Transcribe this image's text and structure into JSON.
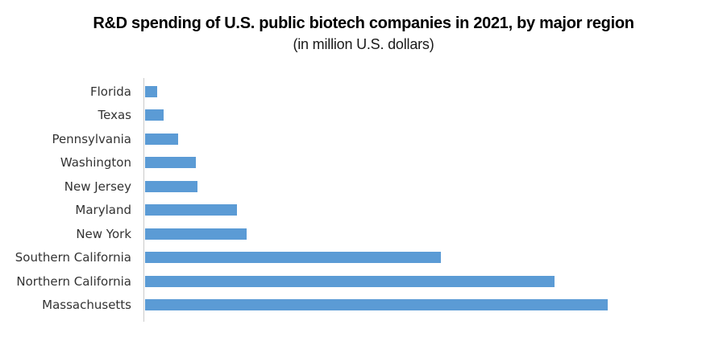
{
  "colors": {
    "bar": "#5B9BD5",
    "axis_line": "#cbcbcb",
    "title_text": "#000000",
    "label_text": "#333333"
  },
  "chart_data": {
    "type": "bar",
    "orientation": "horizontal",
    "title": "R&D spending of U.S. public biotech companies in 2021, by major region",
    "subtitle": "(in million U.S. dollars)",
    "unit": "million U.S. dollars",
    "categories": [
      "Florida",
      "Texas",
      "Pennsylvania",
      "Washington",
      "New Jersey",
      "Maryland",
      "New York",
      "Southern California",
      "Northern California",
      "Massachusetts"
    ],
    "values": [
      260,
      390,
      700,
      1080,
      1110,
      1950,
      2150,
      6270,
      8670,
      9800
    ],
    "values_estimated": true,
    "xlabel": "",
    "ylabel": "",
    "xlim": [
      0,
      12000
    ],
    "gridlines": false,
    "legend": false,
    "axis_value_labels_shown": false
  }
}
